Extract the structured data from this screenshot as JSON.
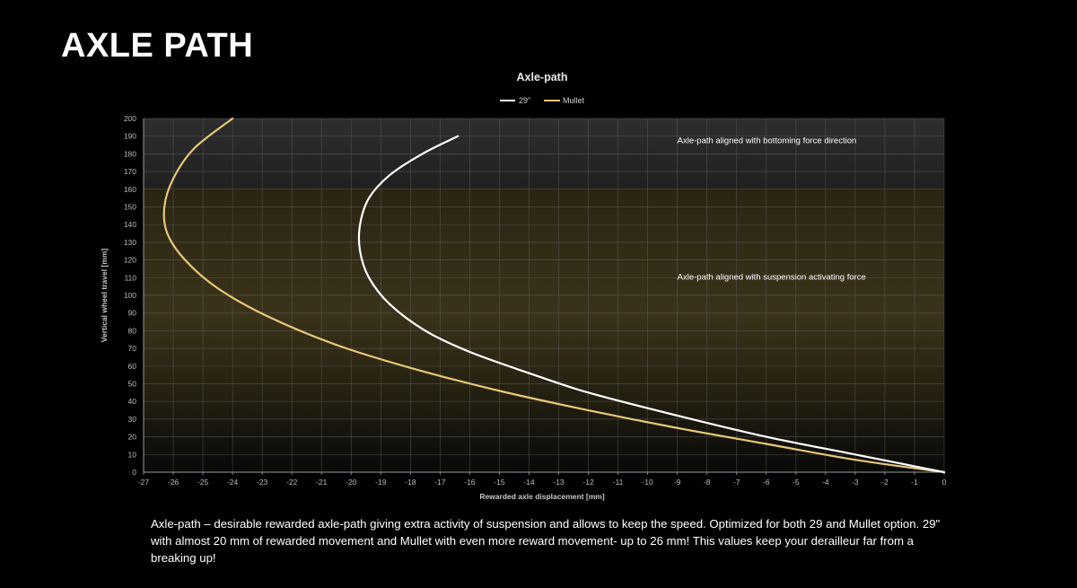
{
  "page": {
    "title": "AXLE PATH",
    "caption": "Axle-path – desirable rewarded axle-path giving extra activity of suspension and allows to keep the speed. Optimized for both 29 and Mullet option. 29\" with almost 20 mm of rewarded movement and Mullet with even more reward movement- up to 26 mm! This values keep your derailleur far from a breaking up!"
  },
  "colors": {
    "background": "#000000",
    "plot_top": "#2e2e2e",
    "plot_gold": "#3a321a",
    "series_29": "#ffffff",
    "series_mullet": "#e8c878"
  },
  "chart_data": {
    "type": "line",
    "title": "Axle-path",
    "xlabel": "Rewarded axle displacement [mm]",
    "ylabel": "Vertical wheel travel [mm]",
    "xlim": [
      -27,
      0
    ],
    "ylim": [
      0,
      200
    ],
    "x_ticks": [
      -27,
      -26,
      -25,
      -24,
      -23,
      -22,
      -21,
      -20,
      -19,
      -18,
      -17,
      -16,
      -15,
      -14,
      -13,
      -12,
      -11,
      -10,
      -9,
      -8,
      -7,
      -6,
      -5,
      -4,
      -3,
      -2,
      -1,
      0
    ],
    "y_ticks": [
      0,
      10,
      20,
      30,
      40,
      50,
      60,
      70,
      80,
      90,
      100,
      110,
      120,
      130,
      140,
      150,
      160,
      170,
      180,
      190,
      200
    ],
    "grid": true,
    "legend_position": "top-center",
    "series": [
      {
        "name": "29\"",
        "color": "#ffffff",
        "x": [
          0,
          -3,
          -6,
          -9,
          -12,
          -14,
          -16,
          -17.5,
          -18.7,
          -19.4,
          -19.7,
          -19.7,
          -19.4,
          -18.7,
          -17.6,
          -16.4
        ],
        "y": [
          0,
          10,
          20,
          32,
          45,
          56,
          68,
          80,
          95,
          110,
          125,
          140,
          155,
          168,
          180,
          190
        ]
      },
      {
        "name": "Mullet",
        "color": "#e8c878",
        "x": [
          0,
          -3,
          -6,
          -9,
          -12,
          -15,
          -18,
          -20.5,
          -22.8,
          -24.5,
          -25.6,
          -26.2,
          -26.3,
          -26.0,
          -25.3,
          -24.0
        ],
        "y": [
          0,
          7,
          16,
          25,
          35,
          46,
          59,
          72,
          88,
          104,
          120,
          135,
          150,
          166,
          183,
          200
        ]
      }
    ],
    "annotations": [
      {
        "text": "Axle-path aligned with bottoming force direction",
        "x": -9,
        "y": 186
      },
      {
        "text": "Axle-path aligned with suspension activating force",
        "x": -9,
        "y": 109
      }
    ]
  }
}
